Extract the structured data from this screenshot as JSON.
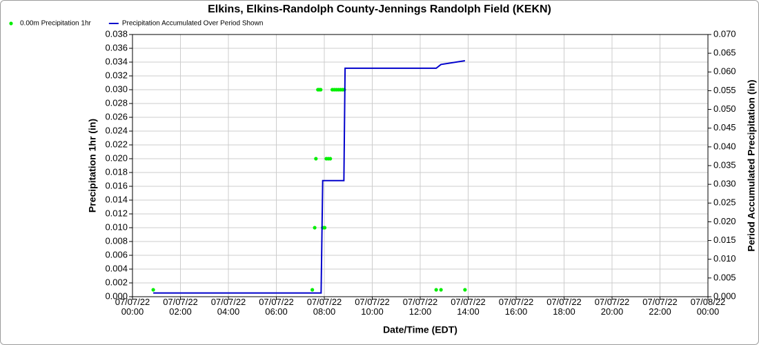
{
  "chart_data": {
    "type": "line",
    "title": "Elkins, Elkins-Randolph County-Jennings Randolph Field (KEKN)",
    "x_label": "Date/Time (EDT)",
    "y_label": "Precipitation 1hr (in)",
    "y2_label": "Period Accumulated Precipitation (in)",
    "grid": true,
    "legend": "top-left",
    "xlim": [
      "07/07/22 00:00",
      "07/08/22 00:00"
    ],
    "xticks": [
      "07/07/22 00:00",
      "07/07/22 02:00",
      "07/07/22 04:00",
      "07/07/22 06:00",
      "07/07/22 08:00",
      "07/07/22 10:00",
      "07/07/22 12:00",
      "07/07/22 14:00",
      "07/07/22 16:00",
      "07/07/22 18:00",
      "07/07/22 20:00",
      "07/07/22 22:00",
      "07/08/22 00:00"
    ],
    "ylim": [
      0,
      0.038
    ],
    "yticks": [
      {
        "value": 0,
        "label": "0.000"
      },
      {
        "value": 0.002,
        "label": "0.002"
      },
      {
        "value": 0.004,
        "label": "0.004"
      },
      {
        "value": 0.006,
        "label": "0.006"
      },
      {
        "value": 0.008,
        "label": "0.008"
      },
      {
        "value": 0.01,
        "label": "0.010"
      },
      {
        "value": 0.012,
        "label": "0.012"
      },
      {
        "value": 0.014,
        "label": "0.014"
      },
      {
        "value": 0.016,
        "label": "0.016"
      },
      {
        "value": 0.018,
        "label": "0.018"
      },
      {
        "value": 0.02,
        "label": "0.020"
      },
      {
        "value": 0.022,
        "label": "0.022"
      },
      {
        "value": 0.024,
        "label": "0.024"
      },
      {
        "value": 0.026,
        "label": "0.026"
      },
      {
        "value": 0.028,
        "label": "0.028"
      },
      {
        "value": 0.03,
        "label": "0.030"
      },
      {
        "value": 0.032,
        "label": "0.032"
      },
      {
        "value": 0.034,
        "label": "0.034"
      },
      {
        "value": 0.036,
        "label": "0.036"
      },
      {
        "value": 0.038,
        "label": "0.038"
      }
    ],
    "y2lim": [
      0,
      0.07
    ],
    "y2ticks": [
      {
        "value": 0,
        "label": "0.000"
      },
      {
        "value": 0.005,
        "label": "0.005"
      },
      {
        "value": 0.01,
        "label": "0.010"
      },
      {
        "value": 0.015,
        "label": "0.015"
      },
      {
        "value": 0.02,
        "label": "0.020"
      },
      {
        "value": 0.025,
        "label": "0.025"
      },
      {
        "value": 0.03,
        "label": "0.030"
      },
      {
        "value": 0.035,
        "label": "0.035"
      },
      {
        "value": 0.04,
        "label": "0.040"
      },
      {
        "value": 0.045,
        "label": "0.045"
      },
      {
        "value": 0.05,
        "label": "0.050"
      },
      {
        "value": 0.055,
        "label": "0.055"
      },
      {
        "value": 0.06,
        "label": "0.060"
      },
      {
        "value": 0.065,
        "label": "0.065"
      },
      {
        "value": 0.07,
        "label": "0.070"
      }
    ],
    "series": [
      {
        "name": "0.00m Precipitation 1hr",
        "type": "scatter",
        "color": "#00ee00",
        "x": [
          "07/07/22 00:52",
          "07/07/22 07:30",
          "07/07/22 07:36",
          "07/07/22 07:39",
          "07/07/22 07:44",
          "07/07/22 07:47",
          "07/07/22 07:51",
          "07/07/22 07:56",
          "07/07/22 08:01",
          "07/07/22 08:05",
          "07/07/22 08:10",
          "07/07/22 08:15",
          "07/07/22 08:20",
          "07/07/22 08:25",
          "07/07/22 08:30",
          "07/07/22 08:35",
          "07/07/22 08:40",
          "07/07/22 08:45",
          "07/07/22 08:50",
          "07/07/22 12:40",
          "07/07/22 12:52",
          "07/07/22 13:52"
        ],
        "values": [
          0.001,
          0.001,
          0.01,
          0.02,
          0.03,
          0.03,
          0.03,
          0.01,
          0.01,
          0.02,
          0.02,
          0.02,
          0.03,
          0.03,
          0.03,
          0.03,
          0.03,
          0.03,
          0.03,
          0.001,
          0.001,
          0.001
        ]
      },
      {
        "name": "Precipitation Accumulated Over Period Shown",
        "type": "line",
        "axis": "y2",
        "color": "#0000cc",
        "x": [
          "07/07/22 00:52",
          "07/07/22 07:52",
          "07/07/22 07:56",
          "07/07/22 08:49",
          "07/07/22 08:52",
          "07/07/22 12:40",
          "07/07/22 12:52",
          "07/07/22 13:52"
        ],
        "values": [
          0.001,
          0.001,
          0.031,
          0.031,
          0.061,
          0.061,
          0.062,
          0.063
        ]
      }
    ]
  }
}
